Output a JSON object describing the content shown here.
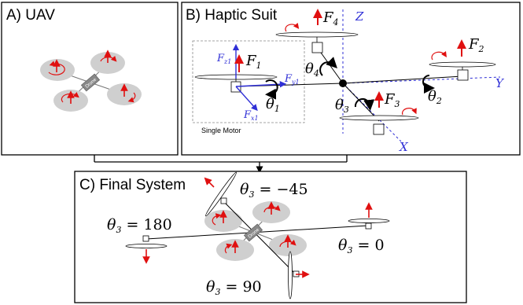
{
  "panels": {
    "uav": {
      "title": "A) UAV",
      "drone_label": "Drone"
    },
    "haptic": {
      "title": "B) Haptic Suit",
      "single_motor_label": "Single Motor"
    },
    "final": {
      "title": "C) Final System",
      "drone_label": "Drone"
    }
  },
  "haptic_labels": {
    "axis_z": "Z",
    "axis_y": "Y",
    "axis_x": "X",
    "f1": "F",
    "f1_sub": "1",
    "f2": "F",
    "f2_sub": "2",
    "f3": "F",
    "f3_sub": "3",
    "f4": "F",
    "f4_sub": "4",
    "theta1": "θ",
    "theta1_sub": "1",
    "theta2": "θ",
    "theta2_sub": "2",
    "theta3": "θ",
    "theta3_sub": "3",
    "theta4": "θ",
    "theta4_sub": "4",
    "fz1": "F",
    "fz1_sub": "z1",
    "fy1": "F",
    "fy1_sub": "y1",
    "fx1": "F",
    "fx1_sub": "x1"
  },
  "final_labels": {
    "theta": "θ",
    "sub": "3",
    "neg45": " = −45",
    "t180": " = 180",
    "t0": " = 0",
    "t90": " = 90"
  },
  "colors": {
    "arrow_red": "#e01010",
    "axis_blue": "#2f2fd6",
    "rotor_gray": "#cfcfcf"
  }
}
